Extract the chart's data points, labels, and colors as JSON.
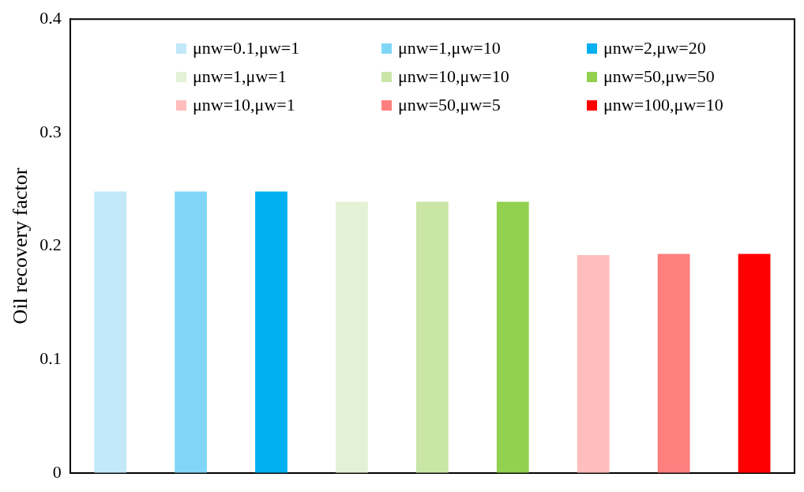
{
  "chart_data": {
    "type": "bar",
    "ylabel": "Oil recovery factor",
    "categories": [
      null,
      null,
      null,
      null,
      null,
      null,
      null,
      null,
      null
    ],
    "series": [
      {
        "name": "μnw=0.1,μw=1",
        "color": "#c1e9f9",
        "values": [
          0.248,
          null,
          null,
          null,
          null,
          null,
          null,
          null,
          null
        ]
      },
      {
        "name": "μnw=1,μw=10",
        "color": "#80d6f7",
        "values": [
          null,
          0.248,
          null,
          null,
          null,
          null,
          null,
          null,
          null
        ]
      },
      {
        "name": "μnw=2,μw=20",
        "color": "#00b0f0",
        "values": [
          null,
          null,
          0.248,
          null,
          null,
          null,
          null,
          null,
          null
        ]
      },
      {
        "name": "μnw=1,μw=1",
        "color": "#e3f1d5",
        "values": [
          null,
          null,
          null,
          0.239,
          null,
          null,
          null,
          null,
          null
        ]
      },
      {
        "name": "μnw=10,μw=10",
        "color": "#c9e6a7",
        "values": [
          null,
          null,
          null,
          null,
          0.239,
          null,
          null,
          null,
          null
        ]
      },
      {
        "name": "μnw=50,μw=50",
        "color": "#92d050",
        "values": [
          null,
          null,
          null,
          null,
          null,
          0.239,
          null,
          null,
          null
        ]
      },
      {
        "name": "μnw=10,μw=1",
        "color": "#ffbdbd",
        "values": [
          null,
          null,
          null,
          null,
          null,
          null,
          0.192,
          null,
          null
        ]
      },
      {
        "name": "μnw=50,μw=5",
        "color": "#ff7f7f",
        "values": [
          null,
          null,
          null,
          null,
          null,
          null,
          null,
          0.193,
          null
        ]
      },
      {
        "name": "μnw=100,μw=10",
        "color": "#ff0000",
        "values": [
          null,
          null,
          null,
          null,
          null,
          null,
          null,
          null,
          0.193
        ]
      }
    ],
    "ylim": [
      0,
      0.4
    ],
    "yticks": [
      0,
      0.1,
      0.2,
      0.3,
      0.4
    ],
    "grid": false,
    "legend": "top"
  }
}
